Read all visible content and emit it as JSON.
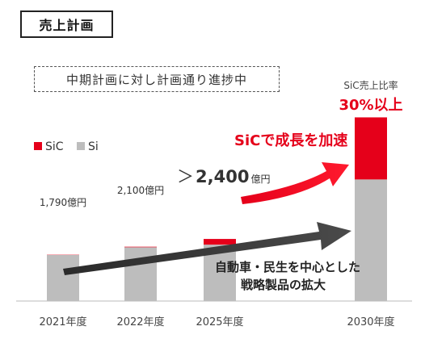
{
  "header": {
    "title": "売上計画",
    "status": "中期計画に対し計画通り進捗中"
  },
  "chart_data": {
    "type": "bar",
    "stacked": true,
    "categories": [
      "2021年度",
      "2022年度",
      "2025年度",
      "2030年度"
    ],
    "series": [
      {
        "name": "SiC",
        "color": "#e5001a",
        "values": [
          10,
          20,
          220,
          2400
        ]
      },
      {
        "name": "Si",
        "color": "#bdbdbd",
        "values": [
          1780,
          2080,
          2180,
          4700
        ]
      }
    ],
    "ylim": [
      0,
      7800
    ],
    "legend": {
      "position": "top-left"
    },
    "data_labels": [
      "1,790億円",
      "2,100億円",
      "＞2,400億円"
    ],
    "data_label_prefix": "＞",
    "data_label_value": "2,400",
    "data_label_unit": "億円",
    "sic_ratio_label": "SiC売上比率",
    "sic_ratio_value": "30%以上",
    "annotations": {
      "sic_growth": "SiCで成長を加速",
      "strategy_line1": "自動車・民生を中心とした",
      "strategy_line2": "戦略製品の拡大"
    },
    "colors": {
      "sic": "#e5001a",
      "si": "#bdbdbd",
      "arrow_dark": "#333333",
      "accent_red": "#e5001a"
    }
  }
}
